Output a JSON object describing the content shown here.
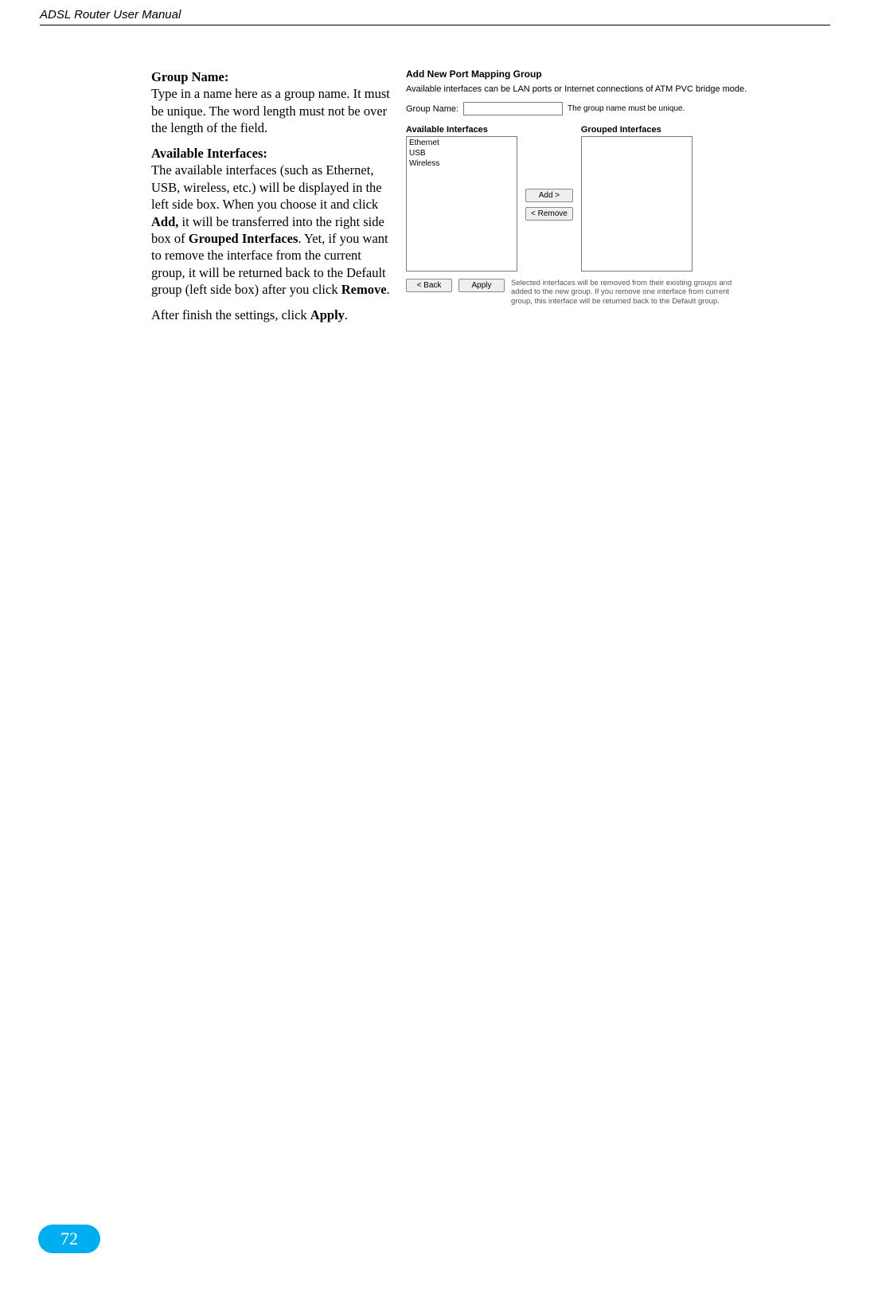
{
  "header": {
    "title": "ADSL Router User Manual"
  },
  "page_number": "72",
  "text": {
    "group_name_label": "Group Name:",
    "group_name_body": "Type in a name here as a group name. It must be unique. The word length must not be over the length of the field.",
    "avail_label": "Available Interfaces:",
    "avail_body_1": "The available interfaces (such as Ethernet, USB, wireless, etc.) will be displayed in the left side box. When you choose it and click ",
    "avail_add": "Add,",
    "avail_body_2": " it will be transferred into the right side box of ",
    "avail_grouped": "Grouped Interfaces",
    "avail_body_3": ". Yet, if you want to remove the interface from the current group, it will be returned back to the Default group (left side box) after you click ",
    "avail_remove": "Remove",
    "avail_body_4": ".",
    "after_1": "After finish the settings, click ",
    "after_apply": "Apply",
    "after_2": "."
  },
  "screenshot": {
    "title": "Add New Port Mapping Group",
    "desc": "Available interfaces can be LAN ports or Internet connections of ATM PVC bridge mode.",
    "group_name_label": "Group Name:",
    "group_name_value": "",
    "group_name_hint": "The group name must be unique.",
    "available_label": "Available Interfaces",
    "grouped_label": "Grouped Interfaces",
    "available_items": [
      "Ethernet",
      "USB",
      "Wireless"
    ],
    "grouped_items": [],
    "add_btn": "Add >",
    "remove_btn": "< Remove",
    "back_btn": "< Back",
    "apply_btn": "Apply",
    "note": "Selected interfaces will be removed from their existing groups and added to the new group. If you remove one interface from current group, this interface will be returned back to the Default group."
  },
  "colors": {
    "badge_bg": "#00aeef",
    "badge_fg": "#ffffff",
    "text": "#000000",
    "note": "#555555",
    "input_border": "#7a7a7a",
    "btn_bg": "#efefef",
    "btn_border": "#888888"
  }
}
